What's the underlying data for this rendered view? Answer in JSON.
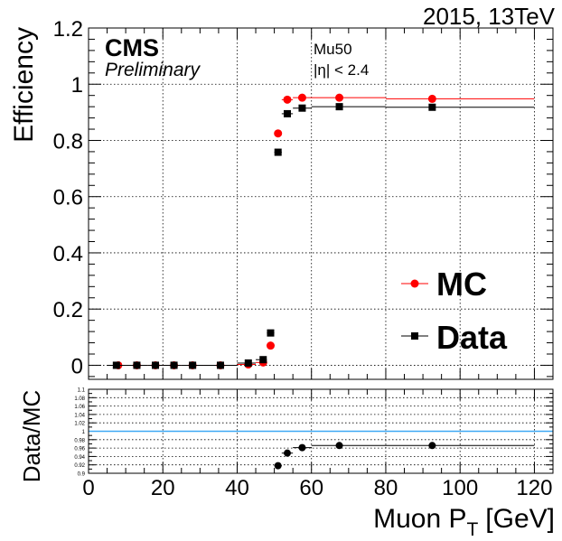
{
  "header": {
    "energy_label": "2015, 13TeV",
    "cms_label": "CMS",
    "preliminary_label": "Preliminary",
    "trigger_label": "Mu50",
    "eta_label": "|η| < 2.4"
  },
  "colors": {
    "mc": "#ff0000",
    "data": "#000000",
    "ratio_line": "#3fa9f5",
    "grid": "#000000"
  },
  "chart_data": [
    {
      "type": "scatter",
      "title": "",
      "xlabel": "",
      "ylabel": "Efficiency",
      "xlim": [
        0,
        125
      ],
      "ylim": [
        -0.05,
        1.2
      ],
      "x_ticks": [
        0,
        20,
        40,
        60,
        80,
        100,
        120
      ],
      "y_ticks": [
        0,
        0.2,
        0.4,
        0.6,
        0.8,
        1,
        1.2
      ],
      "y_tick_labels": [
        "0",
        "0.2",
        "0.4",
        "0.6",
        "0.8",
        "1",
        "1.2"
      ],
      "grid": true,
      "legend": "bottom-right",
      "series": [
        {
          "name": "MC",
          "marker": "circle",
          "color": "#ff0000",
          "points": [
            {
              "x": 8,
              "y": 0.0,
              "x_lo": 6,
              "x_hi": 10
            },
            {
              "x": 13,
              "y": 0.0,
              "x_lo": 10,
              "x_hi": 16
            },
            {
              "x": 18,
              "y": 0.0,
              "x_lo": 16,
              "x_hi": 20
            },
            {
              "x": 23,
              "y": 0.0,
              "x_lo": 20,
              "x_hi": 25
            },
            {
              "x": 28,
              "y": 0.0,
              "x_lo": 25,
              "x_hi": 31
            },
            {
              "x": 35.5,
              "y": 0.0,
              "x_lo": 31,
              "x_hi": 40
            },
            {
              "x": 43,
              "y": 0.003,
              "x_lo": 40,
              "x_hi": 45
            },
            {
              "x": 47,
              "y": 0.01,
              "x_lo": 45,
              "x_hi": 48
            },
            {
              "x": 49,
              "y": 0.07,
              "x_lo": 48,
              "x_hi": 50
            },
            {
              "x": 51,
              "y": 0.825,
              "x_lo": 50,
              "x_hi": 52
            },
            {
              "x": 53.5,
              "y": 0.945,
              "x_lo": 52,
              "x_hi": 55
            },
            {
              "x": 57.5,
              "y": 0.952,
              "x_lo": 55,
              "x_hi": 60
            },
            {
              "x": 67.5,
              "y": 0.952,
              "x_lo": 60,
              "x_hi": 80
            },
            {
              "x": 92.5,
              "y": 0.948,
              "x_lo": 80,
              "x_hi": 120
            }
          ]
        },
        {
          "name": "Data",
          "marker": "square",
          "color": "#000000",
          "points": [
            {
              "x": 7.5,
              "y": 0.0,
              "x_lo": 5,
              "x_hi": 10
            },
            {
              "x": 13,
              "y": 0.0,
              "x_lo": 10,
              "x_hi": 16
            },
            {
              "x": 18,
              "y": 0.0,
              "x_lo": 16,
              "x_hi": 20
            },
            {
              "x": 23,
              "y": 0.0,
              "x_lo": 20,
              "x_hi": 25
            },
            {
              "x": 28,
              "y": 0.0,
              "x_lo": 25,
              "x_hi": 31
            },
            {
              "x": 35.5,
              "y": 0.0,
              "x_lo": 31,
              "x_hi": 40
            },
            {
              "x": 43,
              "y": 0.008,
              "x_lo": 40,
              "x_hi": 45
            },
            {
              "x": 47,
              "y": 0.02,
              "x_lo": 45,
              "x_hi": 48
            },
            {
              "x": 49,
              "y": 0.115,
              "x_lo": 48,
              "x_hi": 50
            },
            {
              "x": 51,
              "y": 0.758,
              "x_lo": 50,
              "x_hi": 52
            },
            {
              "x": 53.5,
              "y": 0.895,
              "x_lo": 52,
              "x_hi": 55
            },
            {
              "x": 57.5,
              "y": 0.915,
              "x_lo": 55,
              "x_hi": 60
            },
            {
              "x": 67.5,
              "y": 0.92,
              "x_lo": 60,
              "x_hi": 80
            },
            {
              "x": 92.5,
              "y": 0.918,
              "x_lo": 80,
              "x_hi": 120
            }
          ]
        }
      ]
    },
    {
      "type": "scatter",
      "title": "",
      "xlabel": "Muon P",
      "xlabel_sub": "T",
      "xlabel_unit": "[GeV]",
      "ylabel": "Data/MC",
      "xlim": [
        0,
        125
      ],
      "ylim": [
        0.9,
        1.1
      ],
      "x_ticks": [
        0,
        20,
        40,
        60,
        80,
        100,
        120
      ],
      "x_tick_labels": [
        "0",
        "20",
        "40",
        "60",
        "80",
        "100",
        "120"
      ],
      "y_ticks": [
        0.9,
        0.92,
        0.94,
        0.96,
        0.98,
        1,
        1.02,
        1.04,
        1.06,
        1.08,
        1.1
      ],
      "y_tick_labels": [
        "0.9",
        "0.92",
        "0.94",
        "0.96",
        "0.98",
        "1",
        "1.02",
        "1.04",
        "1.06",
        "1.08",
        "1.1"
      ],
      "reference_line": 1.0,
      "grid": true,
      "series": [
        {
          "name": "",
          "marker": "circle",
          "color": "#000000",
          "points": [
            {
              "x": 51,
              "y": 0.918,
              "x_lo": 50,
              "x_hi": 52
            },
            {
              "x": 53.5,
              "y": 0.948,
              "x_lo": 52,
              "x_hi": 55
            },
            {
              "x": 57.5,
              "y": 0.961,
              "x_lo": 55,
              "x_hi": 60
            },
            {
              "x": 67.5,
              "y": 0.966,
              "x_lo": 60,
              "x_hi": 80
            },
            {
              "x": 92.5,
              "y": 0.966,
              "x_lo": 80,
              "x_hi": 120
            }
          ]
        }
      ]
    }
  ]
}
